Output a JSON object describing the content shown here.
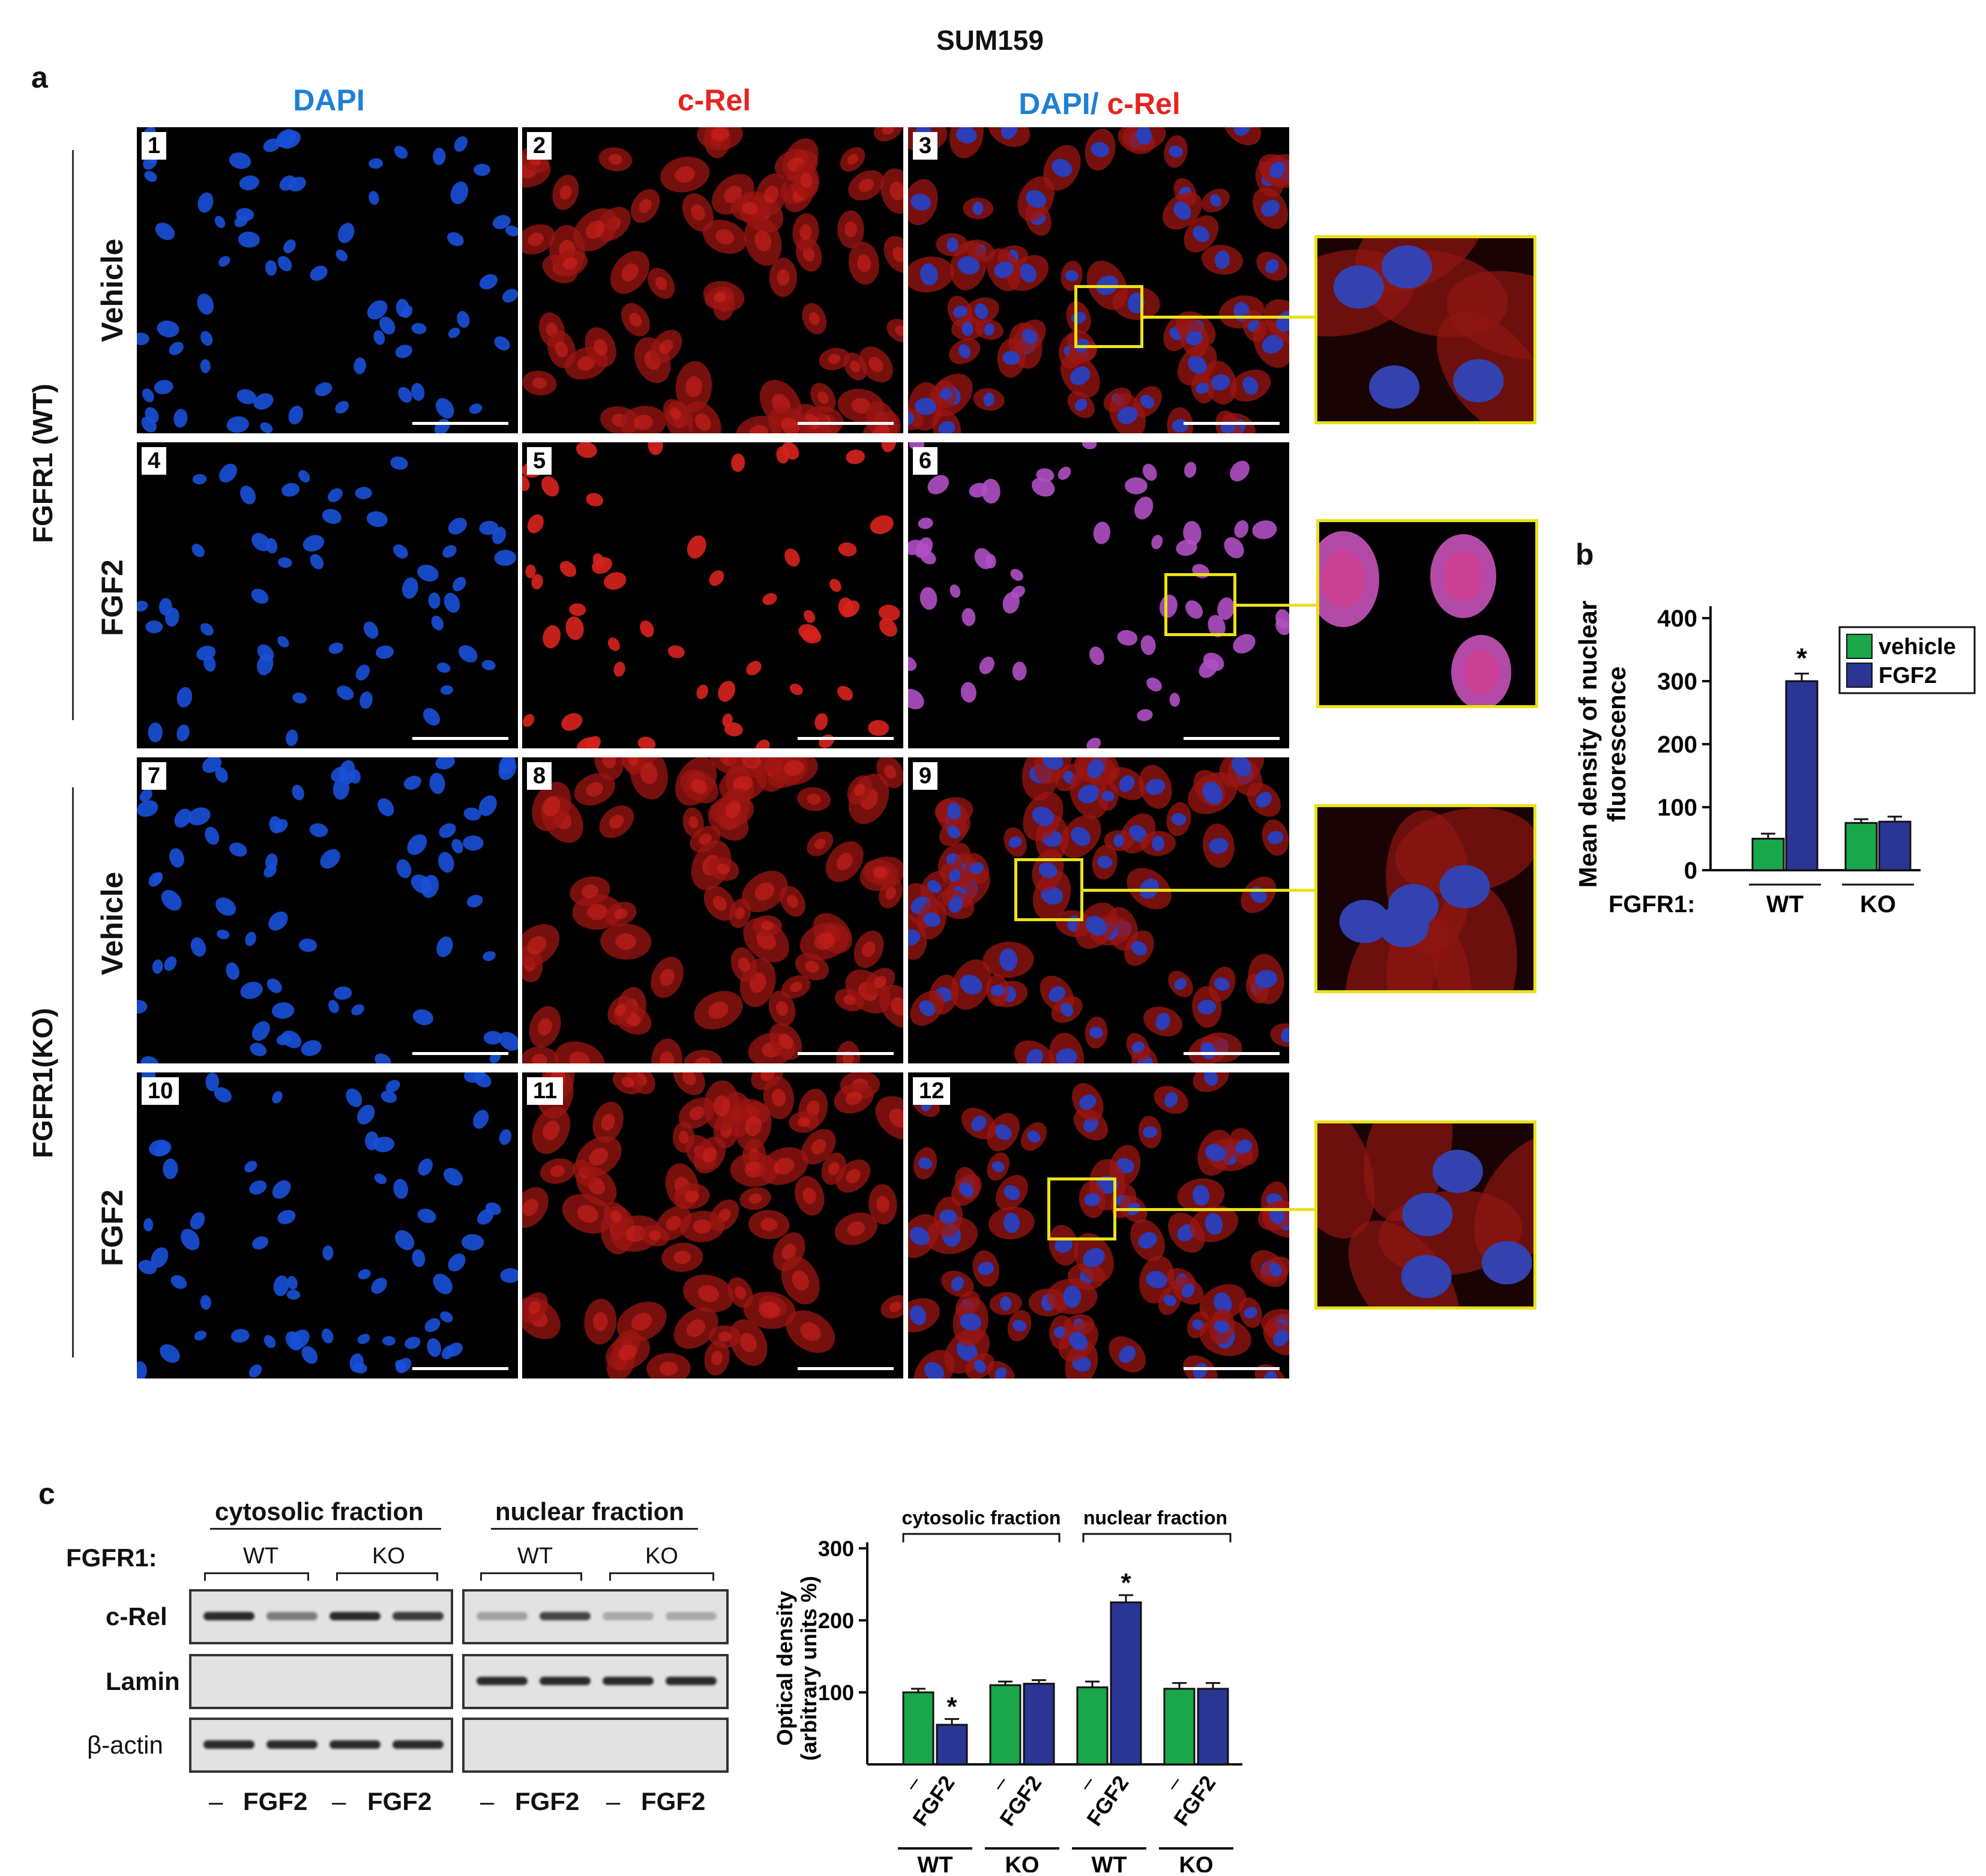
{
  "figure_title": "SUM159",
  "panel_labels": {
    "a": "a",
    "b": "b",
    "c": "c"
  },
  "columns": {
    "dapi": "DAPI",
    "crel": "c-Rel",
    "merge_dapi": "DAPI/",
    "merge_crel": " c-Rel"
  },
  "colors": {
    "dapi": "#1f7fd6",
    "crel": "#e52521",
    "zoom_box": "#e9e21a",
    "vehicle_bar": "#1aa64a",
    "fgf2_bar": "#2a3594"
  },
  "rows": [
    {
      "treatment": "Vehicle",
      "numbers": [
        "1",
        "2",
        "3"
      ]
    },
    {
      "treatment": "FGF2",
      "numbers": [
        "4",
        "5",
        "6"
      ]
    },
    {
      "treatment": "Vehicle",
      "numbers": [
        "7",
        "8",
        "9"
      ]
    },
    {
      "treatment": "FGF2",
      "numbers": [
        "10",
        "11",
        "12"
      ]
    }
  ],
  "groups": {
    "wt": "FGFR1 (WT)",
    "ko": "FGFR1(KO)"
  },
  "blot": {
    "headers": {
      "cyto": "cytosolic fraction",
      "nuc": "nuclear fraction"
    },
    "fgfr1_label": "FGFR1:",
    "wt": "WT",
    "ko": "KO",
    "rows": [
      "c-Rel",
      "Lamin",
      "β-actin"
    ],
    "lanes": [
      "–",
      "FGF2",
      "–",
      "FGF2",
      "–",
      "FGF2",
      "–",
      "FGF2"
    ]
  },
  "chart_data": [
    {
      "type": "bar",
      "ylabel": "Mean density of nuclear fluorescence",
      "ylim": [
        0,
        400
      ],
      "yticks": [
        0,
        100,
        200,
        300,
        400
      ],
      "xaxis_prefix": "FGFR1:",
      "categories": [
        "WT",
        "KO"
      ],
      "series": [
        {
          "name": "vehicle",
          "values": [
            50,
            75
          ],
          "errors": [
            8,
            6
          ]
        },
        {
          "name": "FGF2",
          "values": [
            300,
            77
          ],
          "errors": [
            12,
            8
          ]
        }
      ],
      "annotations": [
        {
          "text": "*",
          "category": "WT",
          "series": "FGF2"
        }
      ],
      "legend": "top-right"
    },
    {
      "type": "bar",
      "ylabel": "Optical density (arbitrary units %)",
      "ylim": [
        0,
        300
      ],
      "yticks": [
        100,
        200,
        300
      ],
      "group_headers": [
        "cytosolic fraction",
        "nuclear fraction"
      ],
      "categories": [
        "WT",
        "KO",
        "WT",
        "KO"
      ],
      "tick_labels": [
        "–",
        "FGF2",
        "–",
        "FGF2",
        "–",
        "FGF2",
        "–",
        "FGF2"
      ],
      "series": [
        {
          "values": [
            100,
            110,
            107,
            105
          ],
          "errors": [
            5,
            5,
            8,
            8
          ]
        },
        {
          "values": [
            55,
            112,
            225,
            105
          ],
          "errors": [
            8,
            5,
            10,
            8
          ]
        }
      ],
      "annotations": [
        {
          "text": "*",
          "category_index": 0,
          "series_index": 1
        },
        {
          "text": "*",
          "category_index": 2,
          "series_index": 1
        }
      ]
    }
  ]
}
